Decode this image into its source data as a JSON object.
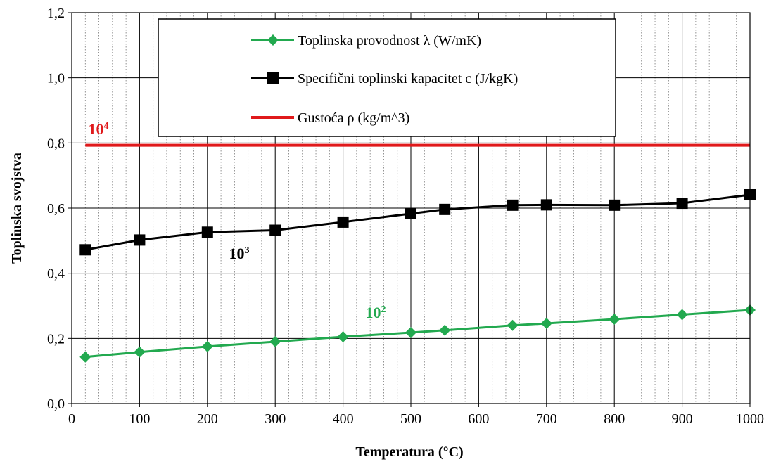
{
  "chart_data": {
    "type": "line",
    "xlabel": "Temperatura (°C)",
    "ylabel": "Toplinska svojstva",
    "xlim": [
      0,
      1000
    ],
    "ylim": [
      0,
      1.2
    ],
    "x_ticks": [
      "0",
      "100",
      "200",
      "300",
      "400",
      "500",
      "600",
      "700",
      "800",
      "900",
      "1000"
    ],
    "y_ticks": [
      "0,0",
      "0,2",
      "0,4",
      "0,6",
      "0,8",
      "1,0",
      "1,2"
    ],
    "grid": true,
    "legend_position": "top-center",
    "series": [
      {
        "name": "Toplinska provodnost λ (W/mK)",
        "color": "#22a94f",
        "marker": "diamond",
        "note": {
          "base": "10",
          "exp": "2"
        },
        "x": [
          20,
          100,
          200,
          300,
          400,
          500,
          550,
          650,
          700,
          800,
          900,
          1000
        ],
        "y": [
          0.143,
          0.158,
          0.175,
          0.19,
          0.205,
          0.218,
          0.225,
          0.24,
          0.246,
          0.259,
          0.273,
          0.287
        ]
      },
      {
        "name": "Specifični toplinski kapacitet c (J/kgK)",
        "color": "#000000",
        "marker": "square",
        "note": {
          "base": "10",
          "exp": "3"
        },
        "x": [
          20,
          100,
          200,
          300,
          400,
          500,
          550,
          650,
          700,
          800,
          900,
          1000
        ],
        "y": [
          0.472,
          0.502,
          0.526,
          0.532,
          0.557,
          0.583,
          0.596,
          0.609,
          0.61,
          0.609,
          0.615,
          0.641
        ]
      },
      {
        "name": "Gustoća ρ (kg/m^3)",
        "color": "#e0191b",
        "marker": "none",
        "note": {
          "base": "10",
          "exp": "4"
        },
        "x": [
          20,
          1000
        ],
        "y": [
          0.793,
          0.793
        ]
      }
    ]
  }
}
